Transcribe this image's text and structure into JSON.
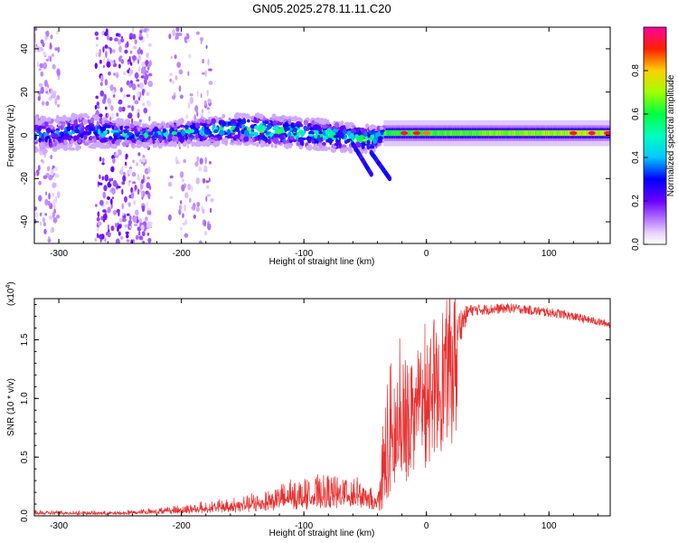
{
  "title": "GN05.2025.278.11.11.C20",
  "chart_data": [
    {
      "type": "heatmap",
      "name": "spectrogram",
      "xlabel": "Height of straight line (km)",
      "ylabel": "Frequency (Hz)",
      "xlim": [
        -320,
        150
      ],
      "ylim": [
        -50,
        50
      ],
      "xticks": [
        -300,
        -200,
        -100,
        0,
        100
      ],
      "yticks": [
        -40,
        -20,
        0,
        20,
        40
      ],
      "colorbar": {
        "label": "Normalized spectral amplitude",
        "range": [
          0.0,
          1.0
        ],
        "ticks": [
          "0.0",
          "0.2",
          "0.4",
          "0.6",
          "0.8"
        ],
        "tick_values": [
          0.0,
          0.2,
          0.4,
          0.6,
          0.8
        ]
      },
      "band": [
        {
          "x": -320,
          "center": 0,
          "halfwidth": 8,
          "amp": 0.3
        },
        {
          "x": -280,
          "center": 2,
          "halfwidth": 8,
          "amp": 0.35
        },
        {
          "x": -230,
          "center": 0,
          "halfwidth": 5,
          "amp": 0.4
        },
        {
          "x": -150,
          "center": 3,
          "halfwidth": 7,
          "amp": 0.5
        },
        {
          "x": -80,
          "center": 0,
          "halfwidth": 7,
          "amp": 0.5
        },
        {
          "x": -45,
          "center": -2,
          "halfwidth": 6,
          "amp": 0.55
        },
        {
          "x": -35,
          "center": 1,
          "halfwidth": 3,
          "amp": 0.6
        },
        {
          "x": 0,
          "center": 1,
          "halfwidth": 2,
          "amp": 0.6
        },
        {
          "x": 150,
          "center": 1,
          "halfwidth": 2,
          "amp": 0.7
        }
      ],
      "hotspots": [
        {
          "x": -18,
          "y": 1,
          "amp": 0.95
        },
        {
          "x": -8,
          "y": 1,
          "amp": 0.9
        },
        {
          "x": 0,
          "y": 1,
          "amp": 0.85
        },
        {
          "x": 120,
          "y": 1,
          "amp": 0.9
        },
        {
          "x": 135,
          "y": 1,
          "amp": 0.95
        },
        {
          "x": 148,
          "y": 1,
          "amp": 0.95
        }
      ],
      "scatter_columns": [
        {
          "x_from": -320,
          "x_to": -300,
          "density": 0.5
        },
        {
          "x_from": -270,
          "x_to": -240,
          "density": 0.9
        },
        {
          "x_from": -240,
          "x_to": -225,
          "density": 0.6
        },
        {
          "x_from": -210,
          "x_to": -175,
          "density": 0.5
        }
      ],
      "tails": [
        {
          "x_from": -60,
          "y_from": -4,
          "x_to": -45,
          "y_to": -18
        },
        {
          "x_from": -45,
          "y_from": -8,
          "x_to": -30,
          "y_to": -20
        }
      ]
    },
    {
      "type": "line",
      "name": "snr",
      "xlabel": "Height of straight line (km)",
      "ylabel": "SNR (10 * v/v)",
      "multiplier": "(x10",
      "multiplier_exp": "4",
      "multiplier_close": ")",
      "color": "#e83030",
      "xlim": [
        -320,
        150
      ],
      "ylim": [
        0,
        1.85
      ],
      "xticks": [
        -300,
        -200,
        -100,
        0,
        100
      ],
      "yticks": [
        0.0,
        0.5,
        1.0,
        1.5
      ],
      "ytick_labels": [
        "0.0",
        "0.5",
        "1.0",
        "1.5"
      ],
      "envelope": [
        {
          "x": -320,
          "base": 0.02,
          "amp": 0.03
        },
        {
          "x": -250,
          "base": 0.02,
          "amp": 0.02
        },
        {
          "x": -200,
          "base": 0.04,
          "amp": 0.06
        },
        {
          "x": -150,
          "base": 0.07,
          "amp": 0.1
        },
        {
          "x": -110,
          "base": 0.12,
          "amp": 0.2
        },
        {
          "x": -60,
          "base": 0.15,
          "amp": 0.25
        },
        {
          "x": -40,
          "base": 0.08,
          "amp": 0.1
        },
        {
          "x": -32,
          "base": 0.2,
          "amp": 1.2
        },
        {
          "x": -20,
          "base": 0.5,
          "amp": 1.1
        },
        {
          "x": -10,
          "base": 0.9,
          "amp": 0.7
        },
        {
          "x": 0,
          "base": 1.0,
          "amp": 0.5
        },
        {
          "x": 20,
          "base": 1.5,
          "amp": 0.25
        },
        {
          "x": 35,
          "base": 1.75,
          "amp": 0.05
        },
        {
          "x": 70,
          "base": 1.77,
          "amp": 0.04
        },
        {
          "x": 110,
          "base": 1.72,
          "amp": 0.04
        },
        {
          "x": 150,
          "base": 1.63,
          "amp": 0.03
        }
      ]
    }
  ]
}
